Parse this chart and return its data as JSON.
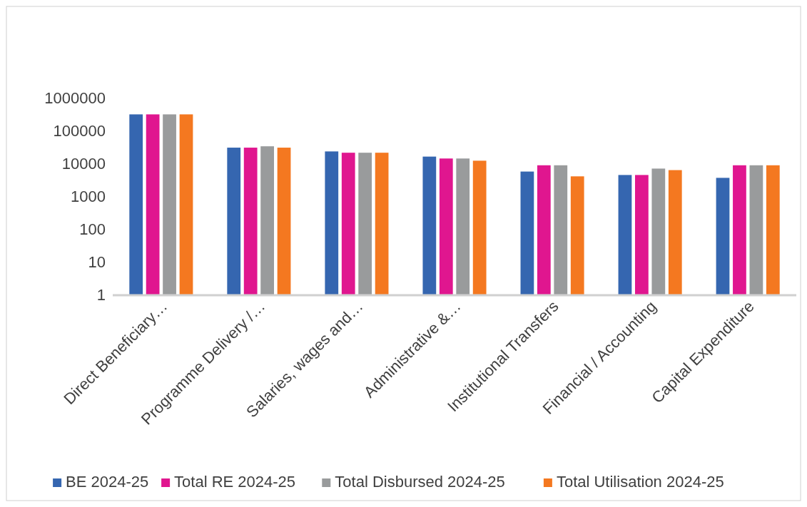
{
  "chart_data": {
    "type": "bar",
    "log": true,
    "categories": [
      "Direct Beneficiary…",
      "Programme Delivery /…",
      "Salaries, wages and…",
      "Administrative &…",
      "Institutional Transfers",
      "Financial / Accounting",
      "Capital Expenditure"
    ],
    "series": [
      {
        "name": "BE 2024-25",
        "color": "#3566b0",
        "values": [
          310000,
          30000,
          23000,
          16000,
          5600,
          4400,
          3600
        ]
      },
      {
        "name": "Total RE 2024-25",
        "color": "#e0168f",
        "values": [
          310000,
          30000,
          21000,
          14000,
          8700,
          4400,
          8700
        ]
      },
      {
        "name": "Total Disbursed 2024-25",
        "color": "#999b9c",
        "values": [
          310000,
          33000,
          21000,
          14000,
          8700,
          6900,
          8700
        ]
      },
      {
        "name": "Total Utilisation 2024-25",
        "color": "#f47820",
        "values": [
          310000,
          30000,
          21000,
          12000,
          4000,
          6200,
          8700
        ]
      }
    ],
    "ylim": [
      1,
      1000000
    ],
    "yticks": [
      1,
      10,
      100,
      1000,
      10000,
      100000,
      1000000
    ],
    "grid": false,
    "legend": "bottom"
  }
}
